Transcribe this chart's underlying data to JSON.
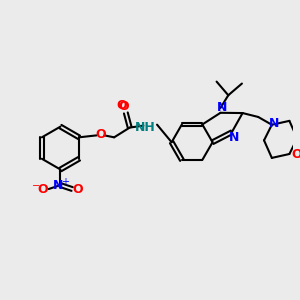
{
  "bg_color": "#ebebeb",
  "title": "",
  "figsize": [
    3.0,
    3.0
  ],
  "dpi": 100,
  "bond_color": "#000000",
  "bond_lw": 1.5,
  "atom_colors": {
    "N": "#0000ff",
    "O": "#ff0000",
    "H": "#008080",
    "C": "#000000"
  },
  "font_size_atom": 9,
  "font_size_small": 8
}
